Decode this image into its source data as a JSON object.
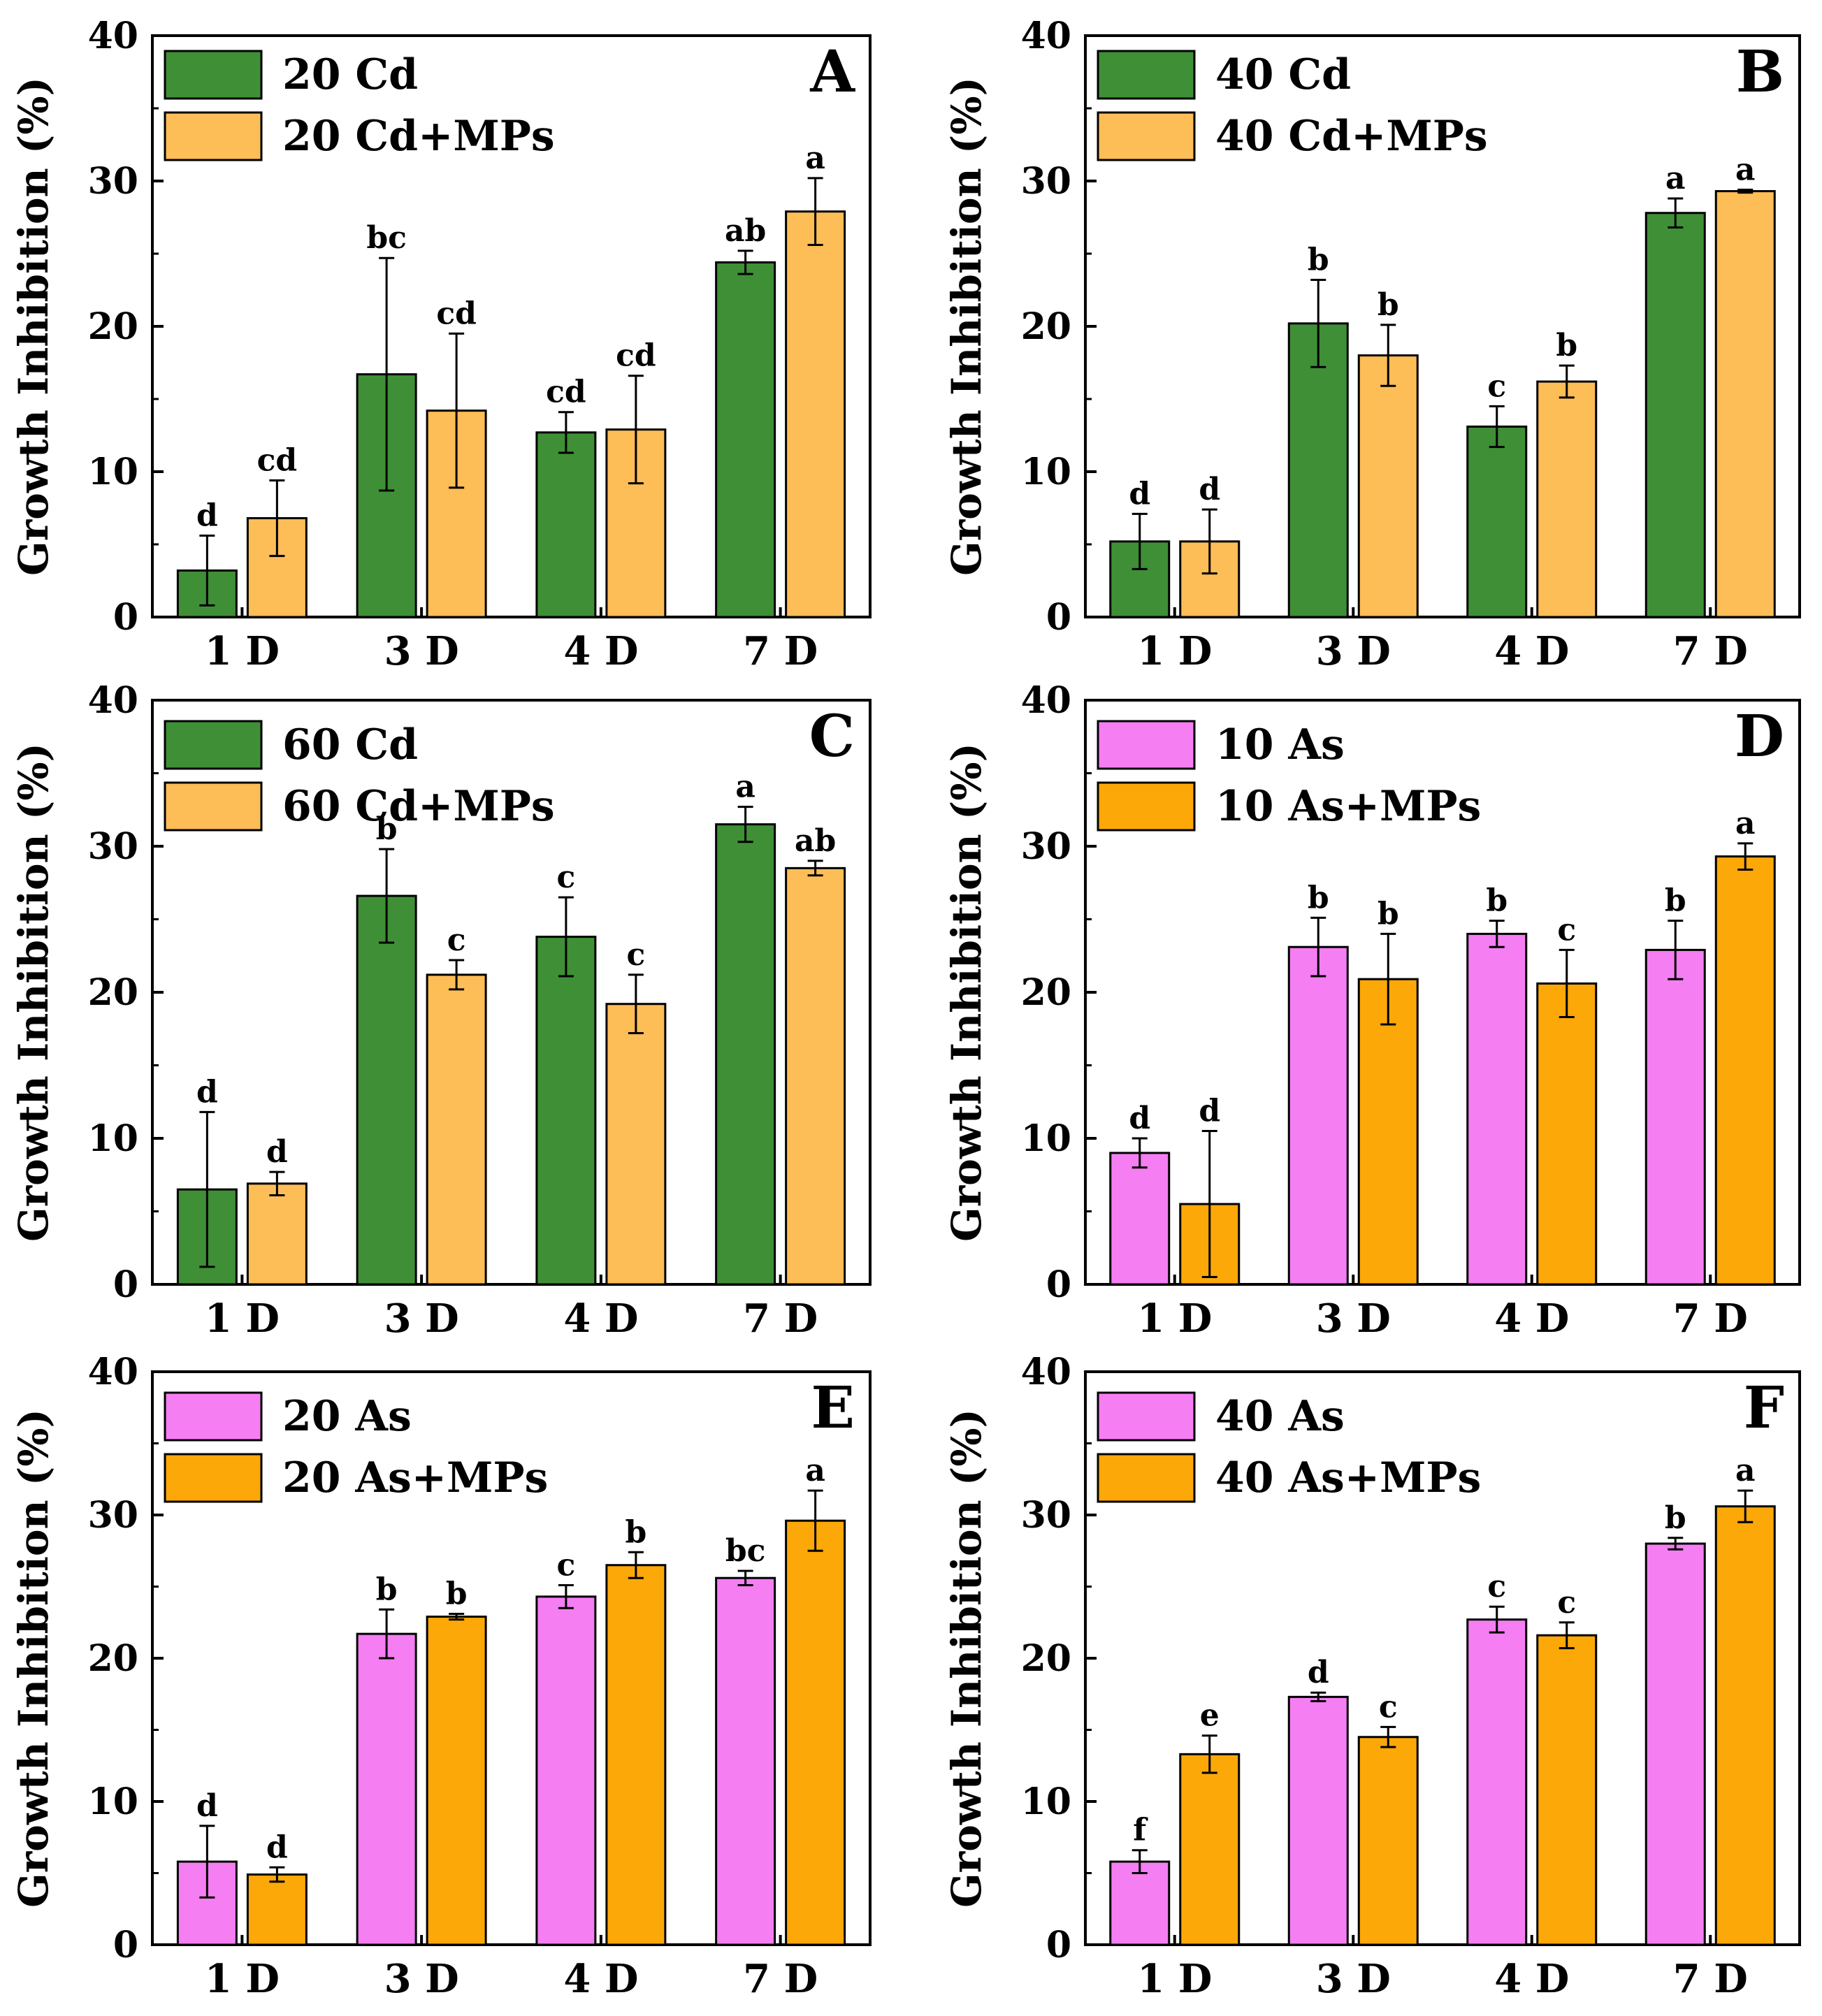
{
  "figure": {
    "description_hidden": false
  },
  "colors": {
    "cd": "#3f8f36",
    "cd_mps": "#fdbd57",
    "as": "#f47ef2",
    "as_mps": "#fba808",
    "axis": "#000000"
  },
  "chart_data": [
    {
      "panel": "A",
      "type": "bar",
      "ylabel": "Growth Inhibition (%)",
      "xlabel": "",
      "ylim": [
        0,
        40
      ],
      "yticks": [
        "0",
        "10",
        "20",
        "30",
        "40"
      ],
      "categories": [
        "1 D",
        "3 D",
        "4 D",
        "7 D"
      ],
      "legend_position": "top-left",
      "series": [
        {
          "name": "20 Cd",
          "color_key": "cd",
          "values": [
            3.2,
            16.7,
            12.7,
            24.4
          ],
          "errors": [
            2.4,
            8.0,
            1.4,
            0.8
          ],
          "letters": [
            "d",
            "bc",
            "cd",
            "ab"
          ]
        },
        {
          "name": "20 Cd+MPs",
          "color_key": "cd_mps",
          "values": [
            6.8,
            14.2,
            12.9,
            27.9
          ],
          "errors": [
            2.6,
            5.3,
            3.7,
            2.3
          ],
          "letters": [
            "cd",
            "cd",
            "cd",
            "a"
          ]
        }
      ]
    },
    {
      "panel": "B",
      "type": "bar",
      "ylabel": "Growth Inhibition (%)",
      "xlabel": "",
      "ylim": [
        0,
        40
      ],
      "yticks": [
        "0",
        "10",
        "20",
        "30",
        "40"
      ],
      "categories": [
        "1 D",
        "3 D",
        "4 D",
        "7 D"
      ],
      "legend_position": "top-left",
      "series": [
        {
          "name": "40 Cd",
          "color_key": "cd",
          "values": [
            5.2,
            20.2,
            13.1,
            27.8
          ],
          "errors": [
            1.9,
            3.0,
            1.4,
            1.0
          ],
          "letters": [
            "d",
            "b",
            "c",
            "a"
          ]
        },
        {
          "name": "40 Cd+MPs",
          "color_key": "cd_mps",
          "values": [
            5.2,
            18.0,
            16.2,
            29.3
          ],
          "errors": [
            2.2,
            2.1,
            1.1,
            0.1
          ],
          "letters": [
            "d",
            "b",
            "b",
            "a"
          ]
        }
      ]
    },
    {
      "panel": "C",
      "type": "bar",
      "ylabel": "Growth Inhibition (%)",
      "xlabel": "",
      "ylim": [
        0,
        40
      ],
      "yticks": [
        "0",
        "10",
        "20",
        "30",
        "40"
      ],
      "categories": [
        "1 D",
        "3 D",
        "4 D",
        "7 D"
      ],
      "legend_position": "top-left",
      "series": [
        {
          "name": "60 Cd",
          "color_key": "cd",
          "values": [
            6.5,
            26.6,
            23.8,
            31.5
          ],
          "errors": [
            5.3,
            3.2,
            2.7,
            1.2
          ],
          "letters": [
            "d",
            "b",
            "c",
            "a"
          ]
        },
        {
          "name": "60 Cd+MPs",
          "color_key": "cd_mps",
          "values": [
            6.9,
            21.2,
            19.2,
            28.5
          ],
          "errors": [
            0.8,
            1.0,
            2.0,
            0.5
          ],
          "letters": [
            "d",
            "c",
            "c",
            "ab"
          ]
        }
      ]
    },
    {
      "panel": "D",
      "type": "bar",
      "ylabel": "Growth Inhibition (%)",
      "xlabel": "",
      "ylim": [
        0,
        40
      ],
      "yticks": [
        "0",
        "10",
        "20",
        "30",
        "40"
      ],
      "categories": [
        "1 D",
        "3 D",
        "4 D",
        "7 D"
      ],
      "legend_position": "top-left",
      "series": [
        {
          "name": "10 As",
          "color_key": "as",
          "values": [
            9.0,
            23.1,
            24.0,
            22.9
          ],
          "errors": [
            1.0,
            2.0,
            0.9,
            2.0
          ],
          "letters": [
            "d",
            "b",
            "b",
            "b"
          ]
        },
        {
          "name": "10 As+MPs",
          "color_key": "as_mps",
          "values": [
            5.5,
            20.9,
            20.6,
            29.3
          ],
          "errors": [
            5.0,
            3.1,
            2.3,
            0.9
          ],
          "letters": [
            "d",
            "b",
            "c",
            "a"
          ]
        }
      ]
    },
    {
      "panel": "E",
      "type": "bar",
      "ylabel": "Growth Inhibition (%)",
      "xlabel": "",
      "ylim": [
        0,
        40
      ],
      "yticks": [
        "0",
        "10",
        "20",
        "30",
        "40"
      ],
      "categories": [
        "1 D",
        "3 D",
        "4 D",
        "7 D"
      ],
      "legend_position": "top-left",
      "series": [
        {
          "name": "20 As",
          "color_key": "as",
          "values": [
            5.8,
            21.7,
            24.3,
            25.6
          ],
          "errors": [
            2.5,
            1.7,
            0.8,
            0.5
          ],
          "letters": [
            "d",
            "b",
            "c",
            "bc"
          ]
        },
        {
          "name": "20 As+MPs",
          "color_key": "as_mps",
          "values": [
            4.9,
            22.9,
            26.5,
            29.6
          ],
          "errors": [
            0.5,
            0.2,
            0.9,
            2.1
          ],
          "letters": [
            "d",
            "b",
            "b",
            "a"
          ]
        }
      ]
    },
    {
      "panel": "F",
      "type": "bar",
      "ylabel": "Growth Inhibition (%)",
      "xlabel": "",
      "ylim": [
        0,
        40
      ],
      "yticks": [
        "0",
        "10",
        "20",
        "30",
        "40"
      ],
      "categories": [
        "1 D",
        "3 D",
        "4 D",
        "7 D"
      ],
      "legend_position": "top-left",
      "series": [
        {
          "name": "40 As",
          "color_key": "as",
          "values": [
            5.8,
            17.3,
            22.7,
            28.0
          ],
          "errors": [
            0.8,
            0.3,
            0.9,
            0.4
          ],
          "letters": [
            "f",
            "d",
            "c",
            "b"
          ]
        },
        {
          "name": "40 As+MPs",
          "color_key": "as_mps",
          "values": [
            13.3,
            14.5,
            21.6,
            30.6
          ],
          "errors": [
            1.3,
            0.7,
            0.9,
            1.1
          ],
          "letters": [
            "e",
            "c",
            "c",
            "a"
          ]
        }
      ]
    }
  ]
}
